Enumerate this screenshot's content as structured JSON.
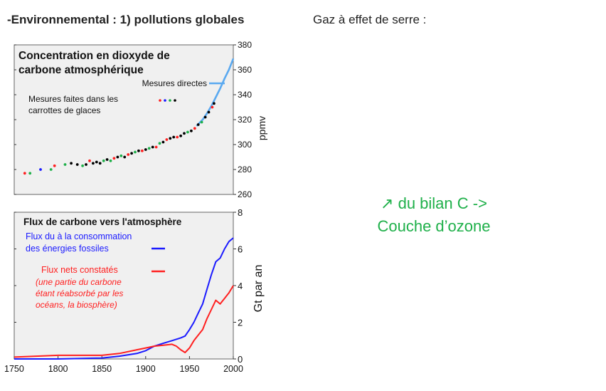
{
  "heading": "-Environnemental : 1) pollutions globales",
  "subheading": "Gaz à effet de serre :",
  "note": {
    "line1": "↗ du bilan C ->",
    "line2": "Couche d’ozone"
  },
  "colors": {
    "green_note": "#1fb04a",
    "direct": "#5aa9f0",
    "fossil": "#1a1aff",
    "net": "#ff2020",
    "plot_bg": "#f0f0f0"
  },
  "chart_data": [
    {
      "type": "scatter",
      "title_line1": "Concentration en dioxyde de",
      "title_line2": "carbone atmosphérique",
      "ylabel": "ppmv",
      "ylim": [
        260,
        380
      ],
      "xlim": [
        1750,
        2000
      ],
      "yticks": [
        "380",
        "360",
        "340",
        "320",
        "300",
        "280",
        "260"
      ],
      "ytick_values": [
        380,
        360,
        340,
        320,
        300,
        280,
        260
      ],
      "legend": {
        "direct": "Mesures directes",
        "ice_line1": "Mesures faites dans les",
        "ice_line2": "carrottes de glaces"
      },
      "series": [
        {
          "name": "Mesures directes",
          "kind": "line",
          "x": [
            1958,
            1965,
            1970,
            1975,
            1980,
            1985,
            1990,
            1995,
            2000
          ],
          "y": [
            315,
            320,
            325,
            331,
            338,
            345,
            353,
            360,
            369
          ]
        },
        {
          "name": "Mesures faites dans les carrottes de glaces",
          "kind": "points",
          "x": [
            1762,
            1768,
            1780,
            1792,
            1796,
            1808,
            1815,
            1822,
            1828,
            1832,
            1836,
            1840,
            1844,
            1848,
            1852,
            1856,
            1860,
            1864,
            1868,
            1872,
            1876,
            1880,
            1884,
            1888,
            1892,
            1896,
            1900,
            1904,
            1908,
            1912,
            1916,
            1920,
            1924,
            1928,
            1932,
            1936,
            1940,
            1944,
            1948,
            1952,
            1956,
            1960,
            1964,
            1968,
            1972,
            1976,
            1978
          ],
          "y": [
            277,
            277,
            280,
            280,
            283,
            284,
            285,
            284,
            283,
            284,
            287,
            285,
            286,
            285,
            287,
            288,
            287,
            289,
            290,
            291,
            290,
            292,
            293,
            294,
            295,
            295,
            296,
            297,
            298,
            298,
            301,
            302,
            304,
            305,
            306,
            306,
            307,
            309,
            310,
            311,
            313,
            316,
            318,
            322,
            326,
            330,
            333
          ],
          "colors": [
            "#ff2020",
            "#1fb04a",
            "#1a1aff",
            "#1fb04a",
            "#ff2020",
            "#1fb04a",
            "#000000",
            "#000000",
            "#1fb04a",
            "#000000",
            "#ff2020",
            "#000000",
            "#000000",
            "#000000",
            "#1fb04a",
            "#000000",
            "#1fb04a",
            "#ff2020",
            "#000000",
            "#1fb04a",
            "#000000",
            "#ff2020",
            "#000000",
            "#1fb04a",
            "#000000",
            "#ff2020",
            "#000000",
            "#1fb04a",
            "#000000",
            "#ff2020",
            "#1fb04a",
            "#000000",
            "#ff2020",
            "#000000",
            "#000000",
            "#ff2020",
            "#000000",
            "#000000",
            "#1fb04a",
            "#000000",
            "#ff2020",
            "#000000",
            "#1fb04a",
            "#000000",
            "#000000",
            "#ff2020",
            "#000000"
          ]
        }
      ]
    },
    {
      "type": "line",
      "title": "Flux de carbone vers l'atmosphère",
      "ylabel": "Gt par an",
      "ylim": [
        0,
        8
      ],
      "xlim": [
        1750,
        2000
      ],
      "yticks": [
        "8",
        "6",
        "4",
        "2",
        "0"
      ],
      "ytick_values": [
        8,
        6,
        4,
        2,
        0
      ],
      "xticks": [
        "1750",
        "1800",
        "1850",
        "1900",
        "1950",
        "2000"
      ],
      "xtick_values": [
        1750,
        1800,
        1850,
        1900,
        1950,
        2000
      ],
      "legend": {
        "fossil_line1": "Flux du à la consommation",
        "fossil_line2": "des énergies fossiles",
        "net_line1": "Flux nets constatés",
        "net_line2": "(une partie du carbone",
        "net_line3": "étant réabsorbé par les",
        "net_line4": "océans, la biosphère)"
      },
      "series": [
        {
          "name": "Flux du à la consommation des énergies fossiles",
          "x": [
            1750,
            1800,
            1850,
            1870,
            1890,
            1900,
            1910,
            1920,
            1930,
            1940,
            1945,
            1950,
            1955,
            1960,
            1965,
            1970,
            1975,
            1980,
            1985,
            1990,
            1995,
            2000
          ],
          "y": [
            0.0,
            0.0,
            0.05,
            0.15,
            0.3,
            0.45,
            0.7,
            0.85,
            1.0,
            1.15,
            1.25,
            1.6,
            2.0,
            2.5,
            3.0,
            3.8,
            4.6,
            5.3,
            5.5,
            6.0,
            6.4,
            6.6
          ]
        },
        {
          "name": "Flux nets constatés",
          "x": [
            1750,
            1775,
            1800,
            1825,
            1850,
            1870,
            1890,
            1900,
            1910,
            1920,
            1930,
            1935,
            1940,
            1945,
            1950,
            1955,
            1960,
            1965,
            1970,
            1975,
            1980,
            1985,
            1990,
            1995,
            2000
          ],
          "y": [
            0.1,
            0.15,
            0.2,
            0.2,
            0.2,
            0.3,
            0.5,
            0.6,
            0.7,
            0.75,
            0.8,
            0.7,
            0.5,
            0.35,
            0.6,
            1.0,
            1.3,
            1.6,
            2.2,
            2.7,
            3.2,
            3.0,
            3.3,
            3.6,
            4.0
          ]
        }
      ]
    }
  ]
}
